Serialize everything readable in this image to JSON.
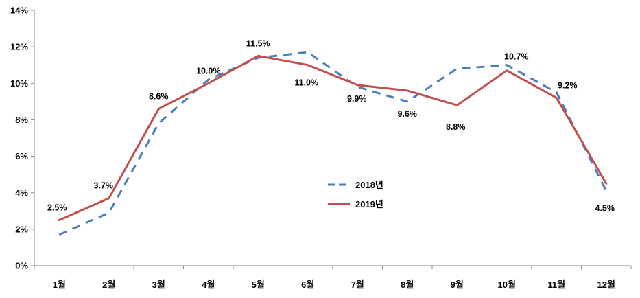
{
  "chart_data": {
    "type": "line",
    "title": "",
    "xlabel": "",
    "ylabel": "",
    "categories": [
      "1월",
      "2월",
      "3월",
      "4월",
      "5월",
      "6월",
      "7월",
      "8월",
      "9월",
      "10월",
      "11월",
      "12월"
    ],
    "ylim": [
      0,
      14
    ],
    "yticks": [
      0,
      2,
      4,
      6,
      8,
      10,
      12,
      14
    ],
    "ytick_labels": [
      "0%",
      "2%",
      "4%",
      "6%",
      "8%",
      "10%",
      "12%",
      "14%"
    ],
    "grid": false,
    "legend_position": "center",
    "series": [
      {
        "name": "2018년",
        "style": "dashed",
        "color": "#4A7EBB",
        "values": [
          1.7,
          2.9,
          7.8,
          10.2,
          11.4,
          11.7,
          9.8,
          9.0,
          10.8,
          11.0,
          9.5,
          4.1
        ]
      },
      {
        "name": "2019년",
        "style": "solid",
        "color": "#C0504D",
        "values": [
          2.5,
          3.7,
          8.6,
          10.0,
          11.5,
          11.0,
          9.9,
          9.6,
          8.8,
          10.7,
          9.2,
          4.5
        ],
        "data_labels": [
          "2.5%",
          "3.7%",
          "8.6%",
          "10.0%",
          "11.5%",
          "11.0%",
          "9.9%",
          "9.6%",
          "8.8%",
          "10.7%",
          "9.2%",
          "4.5%"
        ]
      }
    ]
  }
}
